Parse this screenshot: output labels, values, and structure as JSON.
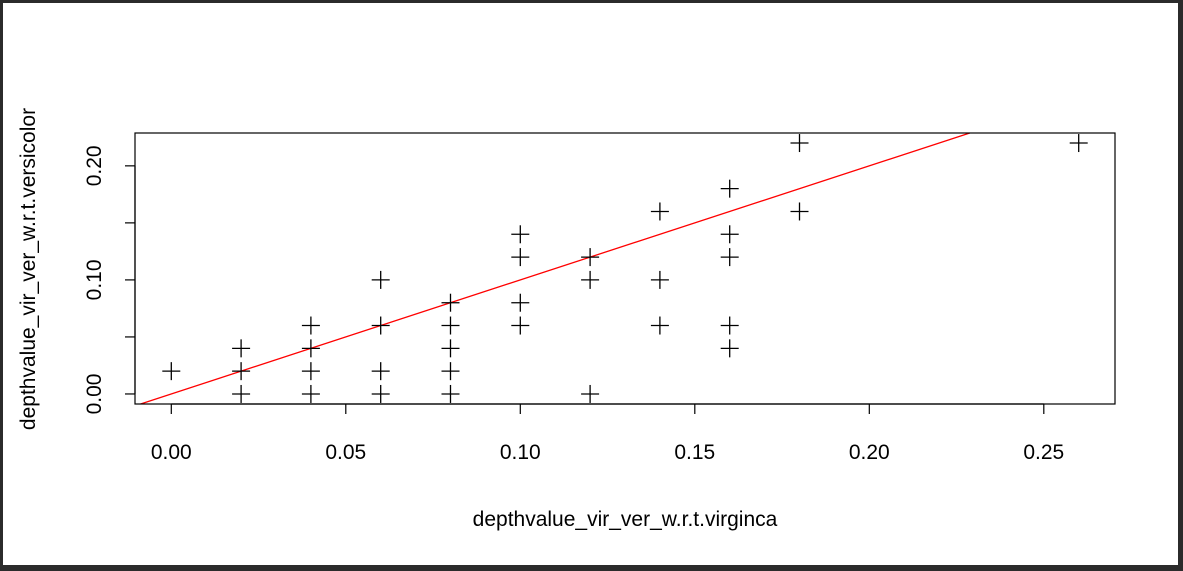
{
  "chart_data": {
    "type": "scatter",
    "title": "",
    "xlabel": "depthvalue_vir_ver_w.r.t.virginca",
    "ylabel": "depthvalue_vir_ver_w.r.t.versicolor",
    "xlim": [
      -0.0104,
      0.2704
    ],
    "ylim": [
      -0.0088,
      0.2288
    ],
    "x_ticks": [
      0.0,
      0.05,
      0.1,
      0.15,
      0.2,
      0.25
    ],
    "x_tick_labels": [
      "0.00",
      "0.05",
      "0.10",
      "0.15",
      "0.20",
      "0.25"
    ],
    "y_ticks": [
      0.0,
      0.05,
      0.1,
      0.15,
      0.2
    ],
    "y_tick_labels": [
      "0.00",
      "",
      "0.10",
      "",
      "0.20"
    ],
    "grid": false,
    "marker": "plus",
    "marker_color": "#000000",
    "line_color": "#ff0000",
    "series": [
      {
        "points": [
          [
            0.0,
            0.02
          ],
          [
            0.02,
            0.0
          ],
          [
            0.02,
            0.02
          ],
          [
            0.02,
            0.04
          ],
          [
            0.04,
            0.0
          ],
          [
            0.04,
            0.02
          ],
          [
            0.04,
            0.04
          ],
          [
            0.04,
            0.06
          ],
          [
            0.06,
            0.0
          ],
          [
            0.06,
            0.02
          ],
          [
            0.06,
            0.06
          ],
          [
            0.06,
            0.1
          ],
          [
            0.08,
            0.0
          ],
          [
            0.08,
            0.02
          ],
          [
            0.08,
            0.04
          ],
          [
            0.08,
            0.06
          ],
          [
            0.08,
            0.08
          ],
          [
            0.1,
            0.06
          ],
          [
            0.1,
            0.08
          ],
          [
            0.1,
            0.12
          ],
          [
            0.1,
            0.14
          ],
          [
            0.12,
            0.0
          ],
          [
            0.12,
            0.1
          ],
          [
            0.12,
            0.12
          ],
          [
            0.14,
            0.06
          ],
          [
            0.14,
            0.1
          ],
          [
            0.14,
            0.16
          ],
          [
            0.16,
            0.04
          ],
          [
            0.16,
            0.06
          ],
          [
            0.16,
            0.12
          ],
          [
            0.16,
            0.14
          ],
          [
            0.16,
            0.18
          ],
          [
            0.18,
            0.16
          ],
          [
            0.18,
            0.22
          ],
          [
            0.26,
            0.22
          ]
        ]
      }
    ],
    "reference_line": {
      "slope": 1,
      "intercept": 0
    }
  }
}
